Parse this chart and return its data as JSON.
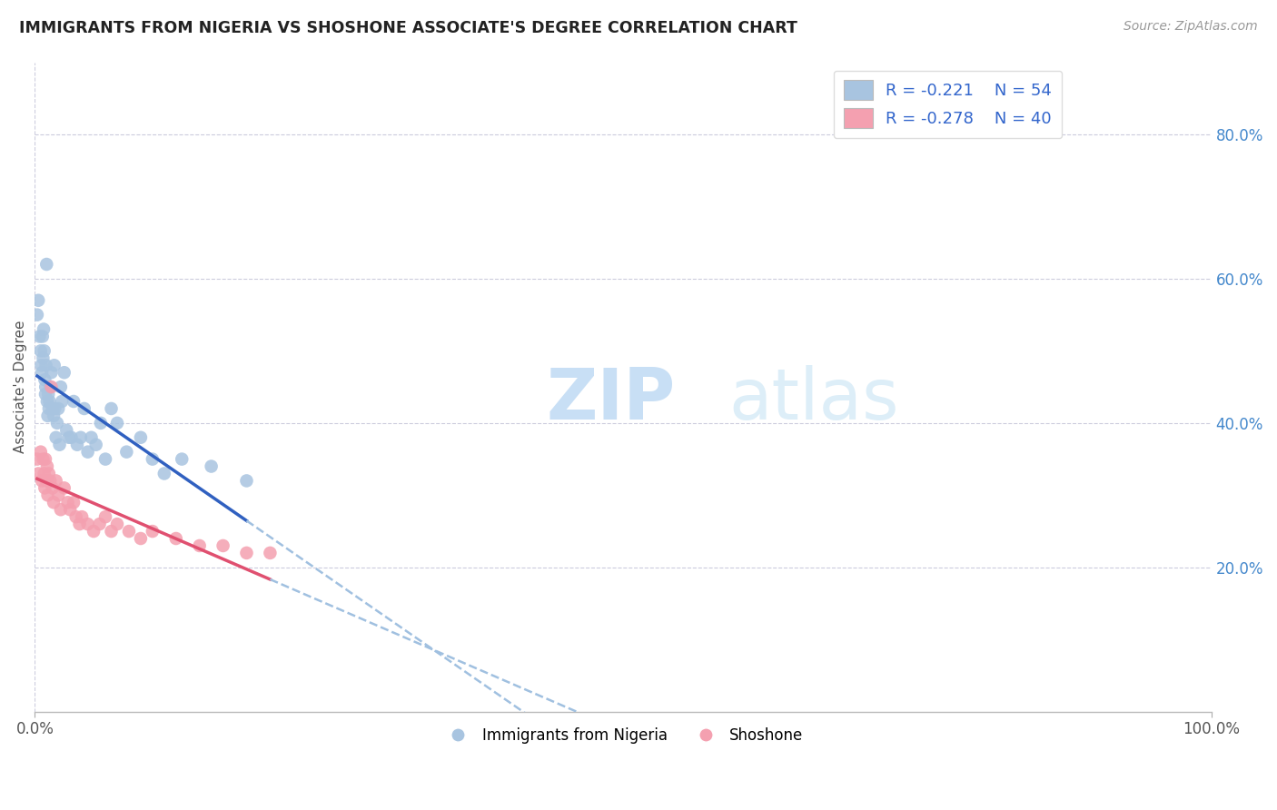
{
  "title": "IMMIGRANTS FROM NIGERIA VS SHOSHONE ASSOCIATE'S DEGREE CORRELATION CHART",
  "source_text": "Source: ZipAtlas.com",
  "ylabel": "Associate's Degree",
  "right_yticks": [
    "20.0%",
    "40.0%",
    "60.0%",
    "80.0%"
  ],
  "right_ytick_vals": [
    20.0,
    40.0,
    60.0,
    80.0
  ],
  "legend_blue_label": "R = -0.221    N = 54",
  "legend_pink_label": "R = -0.278    N = 40",
  "blue_color": "#a8c4e0",
  "pink_color": "#f4a0b0",
  "trendline_blue": "#3060c0",
  "trendline_pink": "#e05070",
  "trendline_dashed_color": "#a0c0e0",
  "watermark_zip": "ZIP",
  "watermark_atlas": "atlas",
  "xlim": [
    0.0,
    100.0
  ],
  "ylim": [
    0.0,
    90.0
  ],
  "figsize": [
    14.06,
    8.92
  ],
  "dpi": 100,
  "blue_scatter_x": [
    0.2,
    0.3,
    0.4,
    0.5,
    0.55,
    0.6,
    0.65,
    0.7,
    0.75,
    0.8,
    0.85,
    0.9,
    0.92,
    0.95,
    1.0,
    1.05,
    1.1,
    1.15,
    1.2,
    1.25,
    1.3,
    1.4,
    1.5,
    1.6,
    1.65,
    1.7,
    1.8,
    1.9,
    2.0,
    2.1,
    2.2,
    2.3,
    2.5,
    2.7,
    2.9,
    3.1,
    3.3,
    3.6,
    3.9,
    4.2,
    4.5,
    4.8,
    5.2,
    5.6,
    6.0,
    6.5,
    7.0,
    7.8,
    9.0,
    10.0,
    11.0,
    12.5,
    15.0,
    18.0
  ],
  "blue_scatter_y": [
    55.0,
    57.0,
    52.0,
    50.0,
    48.0,
    47.0,
    52.0,
    49.0,
    53.0,
    50.0,
    46.0,
    44.0,
    45.0,
    48.0,
    62.0,
    43.0,
    41.0,
    44.0,
    42.0,
    43.0,
    45.0,
    47.0,
    42.0,
    41.0,
    48.0,
    42.0,
    38.0,
    40.0,
    42.0,
    37.0,
    45.0,
    43.0,
    47.0,
    39.0,
    38.0,
    38.0,
    43.0,
    37.0,
    38.0,
    42.0,
    36.0,
    38.0,
    37.0,
    40.0,
    35.0,
    42.0,
    40.0,
    36.0,
    38.0,
    35.0,
    33.0,
    35.0,
    34.0,
    32.0
  ],
  "pink_scatter_x": [
    0.2,
    0.3,
    0.5,
    0.6,
    0.7,
    0.8,
    0.85,
    0.9,
    1.0,
    1.05,
    1.1,
    1.2,
    1.3,
    1.4,
    1.5,
    1.6,
    1.8,
    2.0,
    2.2,
    2.5,
    2.8,
    3.0,
    3.3,
    3.5,
    3.8,
    4.0,
    4.5,
    5.0,
    5.5,
    6.0,
    6.5,
    7.0,
    8.0,
    9.0,
    10.0,
    12.0,
    14.0,
    16.0,
    18.0,
    20.0
  ],
  "pink_scatter_y": [
    35.0,
    33.0,
    36.0,
    32.0,
    35.0,
    33.0,
    31.0,
    35.0,
    32.0,
    34.0,
    30.0,
    33.0,
    32.0,
    45.0,
    31.0,
    29.0,
    32.0,
    30.0,
    28.0,
    31.0,
    29.0,
    28.0,
    29.0,
    27.0,
    26.0,
    27.0,
    26.0,
    25.0,
    26.0,
    27.0,
    25.0,
    26.0,
    25.0,
    24.0,
    25.0,
    24.0,
    23.0,
    23.0,
    22.0,
    22.0
  ],
  "blue_trend_x0": 0.2,
  "blue_trend_x1": 18.0,
  "pink_trend_x0": 0.2,
  "pink_trend_x1": 20.0
}
